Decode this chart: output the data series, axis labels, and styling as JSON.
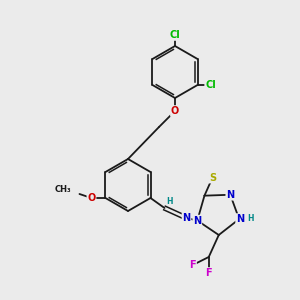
{
  "bg_color": "#ebebeb",
  "bond_color": "#1a1a1a",
  "atom_colors": {
    "Cl": "#00bb00",
    "O": "#cc0000",
    "N": "#0000cc",
    "S": "#aaaa00",
    "F": "#cc00cc",
    "H": "#008888",
    "C": "#1a1a1a"
  },
  "font_size": 7.0,
  "figure_size": [
    3.0,
    3.0
  ],
  "dpi": 100
}
